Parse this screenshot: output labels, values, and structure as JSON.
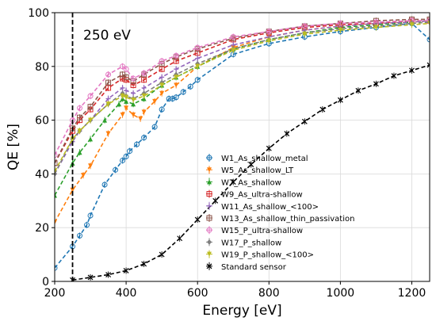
{
  "chart_data": {
    "type": "scatter",
    "xlabel": "Energy [eV]",
    "ylabel": "QE [%]",
    "xlim": [
      200,
      1250
    ],
    "ylim": [
      0,
      100
    ],
    "xticks": [
      200,
      400,
      600,
      800,
      1000,
      1200
    ],
    "yticks": [
      0,
      20,
      40,
      60,
      80,
      100
    ],
    "grid": true,
    "legend_position": "lower-right",
    "annotation": {
      "text": "250 eV",
      "vline_x": 250
    },
    "series": [
      {
        "name": "W1_As_shallow_metal",
        "color": "#1f77b4",
        "marker": "circle-open",
        "x": [
          200,
          250,
          270,
          290,
          300,
          340,
          370,
          390,
          400,
          410,
          430,
          450,
          480,
          500,
          520,
          530,
          540,
          560,
          580,
          600,
          700,
          800,
          900,
          1000,
          1100,
          1200,
          1250
        ],
        "y": [
          5,
          13,
          17,
          21,
          24.5,
          36,
          41.5,
          45,
          46.5,
          48.5,
          51,
          53.5,
          57.5,
          64,
          68,
          68,
          68.5,
          70.5,
          72.5,
          75,
          84.5,
          88.5,
          91,
          93,
          94.5,
          96,
          90
        ]
      },
      {
        "name": "W5_As_shallow_LT",
        "color": "#ff7f0e",
        "marker": "tri-down",
        "x": [
          200,
          250,
          280,
          300,
          350,
          390,
          400,
          420,
          440,
          450,
          480,
          500,
          540,
          600,
          700,
          800,
          900,
          1000,
          1100,
          1200,
          1250
        ],
        "y": [
          22,
          34,
          39.5,
          43,
          55,
          62,
          64.5,
          62,
          60.5,
          63,
          67,
          70,
          73,
          80,
          87,
          91,
          93.5,
          95,
          96,
          96.5,
          97
        ]
      },
      {
        "name": "W7_As_shallow",
        "color": "#2ca02c",
        "marker": "tri-up",
        "x": [
          200,
          250,
          270,
          300,
          340,
          380,
          390,
          400,
          420,
          450,
          500,
          540,
          600,
          700,
          800,
          900,
          1000,
          1100,
          1200,
          1250
        ],
        "y": [
          32,
          44,
          48,
          53,
          60,
          66,
          68,
          67,
          66,
          68,
          73,
          76,
          80,
          86.5,
          90,
          92.5,
          94.5,
          95.5,
          96.5,
          97
        ]
      },
      {
        "name": "W9_As_ultra-shallow",
        "color": "#d62728",
        "marker": "square-open",
        "x": [
          200,
          250,
          270,
          300,
          350,
          390,
          400,
          420,
          450,
          500,
          540,
          600,
          700,
          800,
          900,
          1000,
          1100,
          1200,
          1250
        ],
        "y": [
          44,
          56,
          60,
          64,
          72,
          75.5,
          75,
          73,
          75,
          79,
          82,
          85,
          90,
          92.5,
          94.5,
          95.5,
          96,
          97,
          97
        ]
      },
      {
        "name": "W11_As_shallow_<100>",
        "color": "#9467bd",
        "marker": "plus",
        "x": [
          200,
          250,
          270,
          300,
          350,
          390,
          400,
          420,
          450,
          500,
          540,
          600,
          700,
          800,
          900,
          1000,
          1100,
          1200,
          1250
        ],
        "y": [
          40,
          52,
          56,
          60,
          68,
          72,
          71,
          70,
          72,
          76,
          79,
          83,
          88,
          91,
          93.5,
          95,
          96,
          96.5,
          97
        ]
      },
      {
        "name": "W13_As_shallow_thin_passivation",
        "color": "#8c564b",
        "marker": "square-open",
        "x": [
          200,
          250,
          270,
          300,
          350,
          390,
          400,
          420,
          450,
          500,
          540,
          600,
          700,
          800,
          900,
          1000,
          1100,
          1200,
          1250
        ],
        "y": [
          44,
          57,
          61,
          65,
          74,
          77,
          76,
          74.5,
          77,
          81,
          83.5,
          86.5,
          90.5,
          93,
          95,
          96,
          97,
          97.5,
          97.5
        ]
      },
      {
        "name": "W15_P_ultra-shallow",
        "color": "#e377c2",
        "marker": "circle-open",
        "x": [
          200,
          250,
          270,
          300,
          350,
          390,
          400,
          420,
          450,
          500,
          540,
          600,
          700,
          800,
          900,
          1000,
          1100,
          1200,
          1250
        ],
        "y": [
          47,
          60,
          64.5,
          69,
          77,
          80,
          79,
          75.5,
          77.5,
          82,
          84,
          87,
          91,
          93,
          95,
          96,
          96.5,
          97,
          97
        ]
      },
      {
        "name": "W17_P_shallow",
        "color": "#7f7f7f",
        "marker": "diamond",
        "x": [
          200,
          250,
          270,
          300,
          350,
          390,
          400,
          420,
          450,
          500,
          540,
          600,
          700,
          800,
          900,
          1000,
          1100,
          1200,
          1250
        ],
        "y": [
          40,
          53,
          56,
          60,
          66,
          70,
          69,
          68,
          70,
          74,
          77,
          81,
          86.5,
          90,
          92.5,
          94,
          95,
          96,
          96.5
        ]
      },
      {
        "name": "W19_P_shallow_<100>",
        "color": "#bcbd22",
        "marker": "tri-down",
        "x": [
          200,
          250,
          270,
          300,
          350,
          390,
          400,
          420,
          450,
          500,
          540,
          600,
          700,
          800,
          900,
          1000,
          1100,
          1200,
          1250
        ],
        "y": [
          41,
          53,
          56,
          60,
          66,
          69,
          68.5,
          67.5,
          69,
          73,
          76,
          80,
          86,
          89.5,
          92,
          93.5,
          94.5,
          95.5,
          96
        ]
      },
      {
        "name": "Standard sensor",
        "color": "#000000",
        "marker": "x",
        "x": [
          250,
          300,
          350,
          400,
          450,
          500,
          550,
          600,
          650,
          700,
          750,
          800,
          850,
          900,
          950,
          1000,
          1050,
          1100,
          1150,
          1200,
          1250
        ],
        "y": [
          0.5,
          1.5,
          2.5,
          4,
          6.5,
          10,
          16,
          23,
          30,
          37,
          43.5,
          49.5,
          55,
          59.5,
          64,
          67.5,
          71,
          73.5,
          76.5,
          78.5,
          80.5
        ]
      }
    ]
  }
}
